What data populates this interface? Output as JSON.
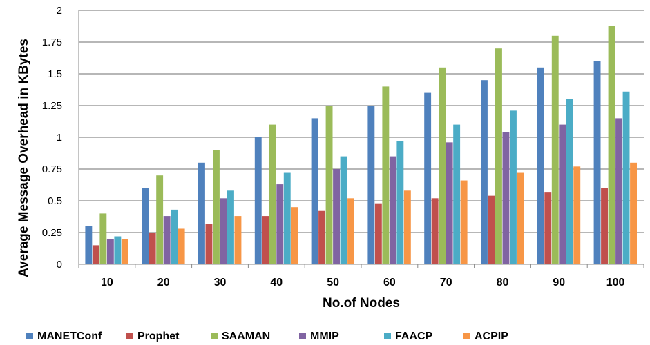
{
  "chart_data": {
    "type": "bar",
    "xlabel": "No.of Nodes",
    "ylabel": "Average Message Overhead in KBytes",
    "categories": [
      "10",
      "20",
      "30",
      "40",
      "50",
      "60",
      "70",
      "80",
      "90",
      "100"
    ],
    "ylim": [
      0,
      2
    ],
    "yticks": [
      "0",
      "0.25",
      "0.5",
      "0.75",
      "1",
      "1.25",
      "1.5",
      "1.75",
      "2"
    ],
    "ytick_values": [
      0,
      0.25,
      0.5,
      0.75,
      1,
      1.25,
      1.5,
      1.75,
      2
    ],
    "grid": "horizontal",
    "legend_position": "bottom",
    "series": [
      {
        "name": "MANETConf",
        "color": "#4F81BD",
        "values": [
          0.3,
          0.6,
          0.8,
          1.0,
          1.15,
          1.25,
          1.35,
          1.45,
          1.55,
          1.6
        ]
      },
      {
        "name": "Prophet",
        "color": "#C0504D",
        "values": [
          0.15,
          0.25,
          0.32,
          0.38,
          0.42,
          0.48,
          0.52,
          0.54,
          0.57,
          0.6
        ]
      },
      {
        "name": "SAAMAN",
        "color": "#9BBB59",
        "values": [
          0.4,
          0.7,
          0.9,
          1.1,
          1.25,
          1.4,
          1.55,
          1.7,
          1.8,
          1.88
        ]
      },
      {
        "name": "MMIP",
        "color": "#8064A2",
        "values": [
          0.2,
          0.38,
          0.52,
          0.63,
          0.75,
          0.85,
          0.96,
          1.04,
          1.1,
          1.15
        ]
      },
      {
        "name": "FAACP",
        "color": "#4BACC6",
        "values": [
          0.22,
          0.43,
          0.58,
          0.72,
          0.85,
          0.97,
          1.1,
          1.21,
          1.3,
          1.36
        ]
      },
      {
        "name": "ACPIP",
        "color": "#F79646",
        "values": [
          0.2,
          0.28,
          0.38,
          0.45,
          0.52,
          0.58,
          0.66,
          0.72,
          0.77,
          0.8
        ]
      }
    ]
  }
}
